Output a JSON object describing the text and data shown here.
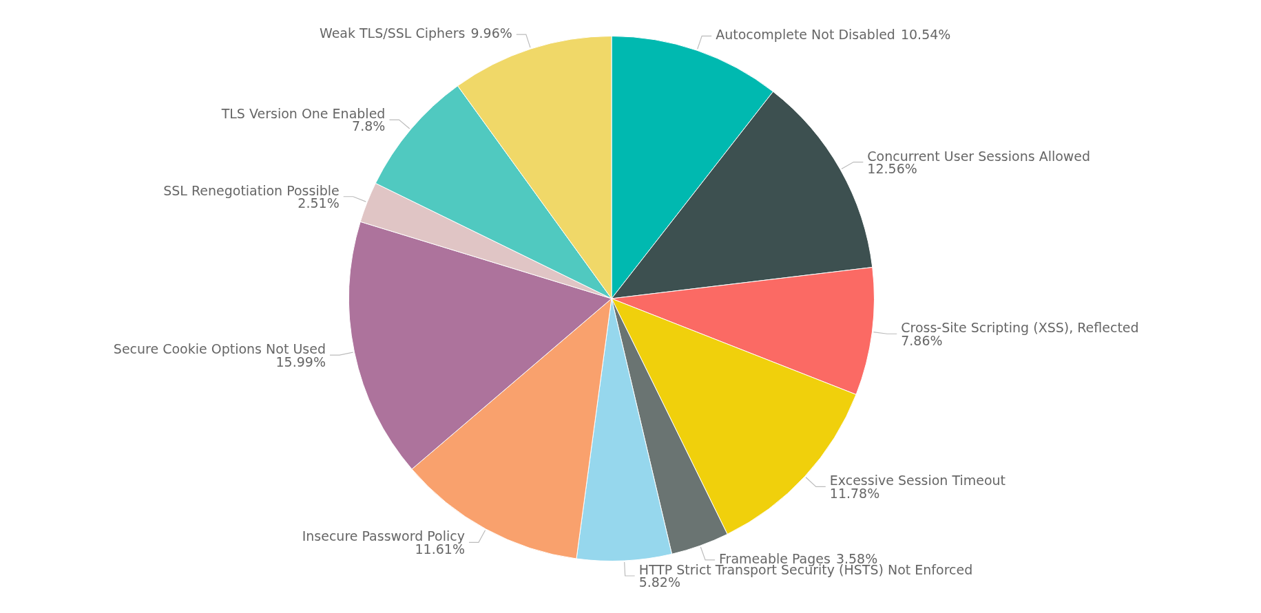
{
  "chart_data": {
    "type": "pie",
    "categories": [
      "Autocomplete Not Disabled",
      "Concurrent User Sessions Allowed",
      "Cross-Site Scripting (XSS), Reflected",
      "Excessive Session Timeout",
      "Frameable Pages",
      "HTTP Strict Transport Security (HSTS) Not Enforced",
      "Insecure Password Policy",
      "Secure Cookie Options Not Used",
      "SSL Renegotiation Possible",
      "TLS Version One Enabled",
      "Weak TLS/SSL Ciphers"
    ],
    "values": [
      10.54,
      12.56,
      7.86,
      11.78,
      3.58,
      5.82,
      11.61,
      15.99,
      2.51,
      7.8,
      9.96
    ],
    "colors": [
      "#00b9b0",
      "#3d5050",
      "#fb6a64",
      "#f0d00c",
      "#6a7472",
      "#96d7ed",
      "#f9a16d",
      "#ad739c",
      "#e0c5c5",
      "#50c9c0",
      "#f0d868"
    ],
    "value_labels": [
      "10.54%",
      "12.56%",
      "7.86%",
      "11.78%",
      "3.58%",
      "5.82%",
      "11.61%",
      "15.99%",
      "2.51%",
      "7.8%",
      "9.96%"
    ],
    "legend": false
  }
}
